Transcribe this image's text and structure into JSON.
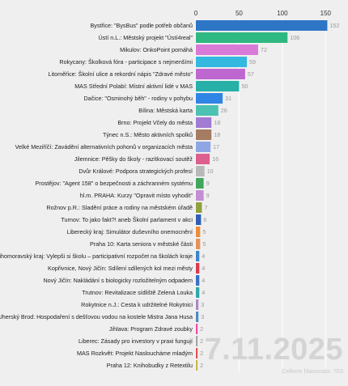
{
  "date": "7.11.2025",
  "total_text": "Celkem hlasovalo: 703",
  "chart_data": {
    "type": "bar",
    "orientation": "horizontal",
    "xlim": [
      0,
      160
    ],
    "ticks": [
      0,
      50,
      100,
      150
    ],
    "grid": true,
    "categories": [
      "Bystřice: \"BysBus\" podle potřeb občanů",
      "Ústí n.L.: Městský projekt \"Ústí4real\"",
      "Mikulov: OnkoPoint pomáhá",
      "Rokycany: Školková fóra - participace s nejmenšími",
      "Litoměřice: Školní ulice a rekordní nápis \"Zdravé město\"",
      "MAS Střední Polabí: Místní aktivní lidé v MAS",
      "Dačice: \"Osminohý běh\" - rodiny v pohybu",
      "Bílina: Městská karta",
      "Brno: Projekt Včely do města",
      "Týnec n.S.: Město aktivních spolků",
      "Velké Meziříčí: Zavádění alternativních pohonů v organizacích města",
      "Jilemnice: Pěšky do školy - razítkovací soutěž",
      "Dvůr Králové: Podpora strategických profesí",
      "Prostějov: \"Agent 158\" o bezpečnosti a záchranném systému",
      "hl.m. PRAHA: Kurzy \"Opravit místo vyhodit\"",
      "Rožnov p.R.: Sladění práce a rodiny na městském úřadě",
      "Turnov: To jako fakt?! aneb Školní parlament v akci",
      "Liberecký kraj: Simulátor duševního onemocnění",
      "Praha 10: Karta seniora v městské části",
      "Jihomoravský kraj: Vylepši si školu – participativní rozpočet na školách kraje",
      "Kopřivnice, Nový Jičín: Sdílení sdílených kol mezi městy",
      "Nový Jičín: Nakládání s biologicky rozložitelným odpadem",
      "Trutnov: Revitalizace sídliště Zelená Louka",
      "Rokytnice n.J.: Cesta k udržitelné Rokytnici",
      "Uherský Brod: Hospodaření s dešťovou vodou na kostele Mistra Jana Husa",
      "Jihlava: Program Zdravé zoubky",
      "Liberec: Zásady pro investory v praxi fungují",
      "MAS Rozkvět: Projekt Nasloucháme mladým",
      "Praha 12: Knihobudky z Retextilu"
    ],
    "values": [
      152,
      106,
      72,
      59,
      57,
      50,
      31,
      26,
      18,
      18,
      17,
      16,
      10,
      9,
      9,
      7,
      6,
      5,
      5,
      4,
      4,
      4,
      4,
      3,
      3,
      2,
      2,
      2,
      2
    ],
    "colors": [
      "#2d76c6",
      "#2fb882",
      "#d97ad9",
      "#34b8e0",
      "#bf67d1",
      "#27b0a8",
      "#2f85e4",
      "#4cc2b3",
      "#a17bd4",
      "#a57b62",
      "#8fa6e4",
      "#dd5f8d",
      "#b8b8b8",
      "#3fa65c",
      "#c48ed4",
      "#8fa03d",
      "#2f5fb3",
      "#ed8d3a",
      "#e3945a",
      "#3f86c9",
      "#d93a4f",
      "#3b6fc0",
      "#2fa8a8",
      "#aa8ac3",
      "#4d8cc0",
      "#f04ca4",
      "#a5a5a5",
      "#e25050",
      "#c8b64a"
    ]
  }
}
